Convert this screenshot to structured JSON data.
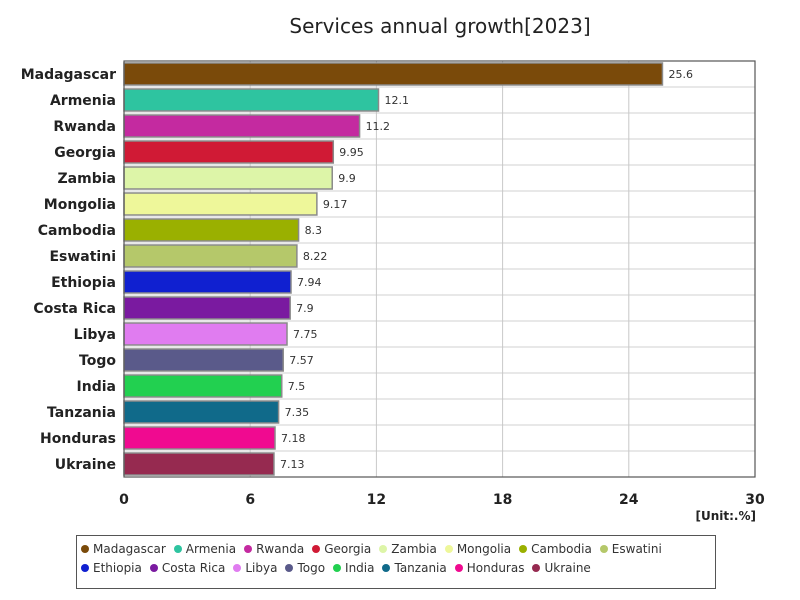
{
  "chart_data": {
    "type": "bar",
    "orientation": "horizontal",
    "title": "Services annual growth[2023]",
    "unit_label": "[Unit:.%]",
    "xlim": [
      0,
      30
    ],
    "xticks": [
      0,
      6,
      12,
      18,
      24,
      30
    ],
    "grid": true,
    "legend_position": "bottom",
    "categories": [
      "Madagascar",
      "Armenia",
      "Rwanda",
      "Georgia",
      "Zambia",
      "Mongolia",
      "Cambodia",
      "Eswatini",
      "Ethiopia",
      "Costa Rica",
      "Libya",
      "Togo",
      "India",
      "Tanzania",
      "Honduras",
      "Ukraine"
    ],
    "values": [
      25.6,
      12.1,
      11.2,
      9.95,
      9.9,
      9.17,
      8.3,
      8.22,
      7.94,
      7.9,
      7.75,
      7.57,
      7.5,
      7.35,
      7.18,
      7.13
    ],
    "value_labels": [
      "25.6",
      "12.1",
      "11.2",
      "9.95",
      "9.9",
      "9.17",
      "8.3",
      "8.22",
      "7.94",
      "7.9",
      "7.75",
      "7.57",
      "7.5",
      "7.35",
      "7.18",
      "7.13"
    ],
    "colors": [
      "#7a4a0a",
      "#2ec4a0",
      "#c42aa0",
      "#d01a35",
      "#ddf5a8",
      "#eef79a",
      "#9ab000",
      "#b5c86a",
      "#1020d0",
      "#7a1aa0",
      "#e07cf0",
      "#5a5a8a",
      "#22d050",
      "#106a8a",
      "#f00a90",
      "#962a50"
    ]
  }
}
